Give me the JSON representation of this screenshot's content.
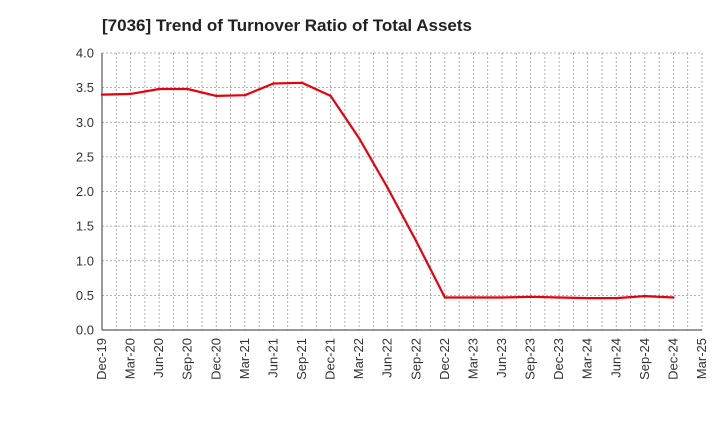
{
  "chart_data": {
    "type": "line",
    "title": "[7036]  Trend of Turnover Ratio of Total Assets",
    "xlabel": "",
    "ylabel": "",
    "categories": [
      "Dec-19",
      "Mar-20",
      "Jun-20",
      "Sep-20",
      "Dec-20",
      "Mar-21",
      "Jun-21",
      "Sep-21",
      "Dec-21",
      "Mar-22",
      "Jun-22",
      "Sep-22",
      "Dec-22",
      "Mar-23",
      "Jun-23",
      "Sep-23",
      "Dec-23",
      "Mar-24",
      "Jun-24",
      "Sep-24",
      "Dec-24",
      "Mar-25"
    ],
    "series": [
      {
        "color": "#e8000b",
        "values": [
          3.4,
          3.41,
          3.48,
          3.48,
          3.38,
          3.39,
          3.56,
          3.57,
          3.38,
          2.77,
          2.05,
          1.28,
          0.47,
          0.47,
          0.47,
          0.48,
          0.47,
          0.46,
          0.46,
          0.49,
          0.47,
          null
        ]
      }
    ],
    "ylim": [
      0,
      4.0
    ],
    "yticks": [
      "0.0",
      "0.5",
      "1.0",
      "1.5",
      "2.0",
      "2.5",
      "3.0",
      "3.5",
      "4.0"
    ],
    "grid": true,
    "legend": "none"
  }
}
